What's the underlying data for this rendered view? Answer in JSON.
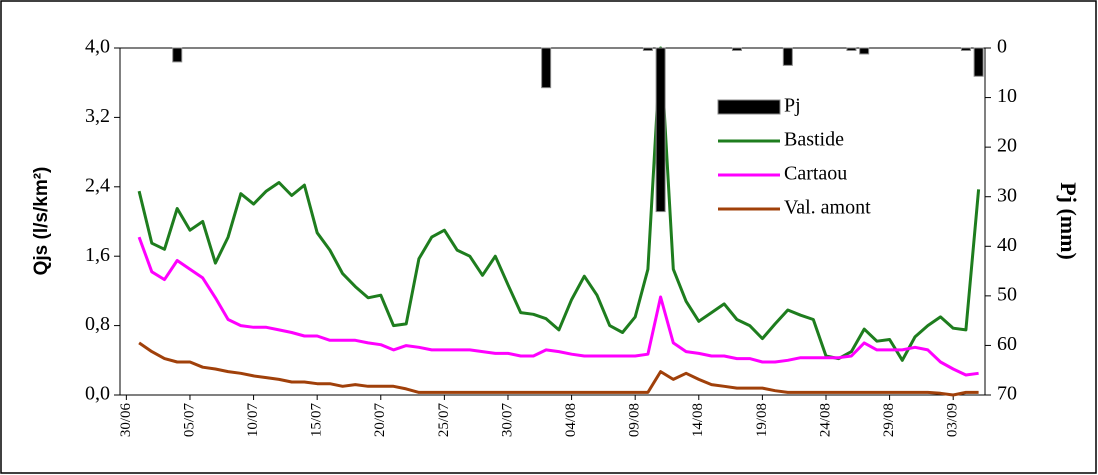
{
  "chart_data": {
    "type": "line",
    "y_label": "Qjs (l/s/km²)",
    "y2_label": "Pj (mm)",
    "categories": [
      "30/06",
      null,
      null,
      null,
      null,
      "05/07",
      null,
      null,
      null,
      null,
      "10/07",
      null,
      null,
      null,
      null,
      "15/07",
      null,
      null,
      null,
      null,
      "20/07",
      null,
      null,
      null,
      null,
      "25/07",
      null,
      null,
      null,
      null,
      "30/07",
      null,
      null,
      null,
      null,
      "04/08",
      null,
      null,
      null,
      null,
      "09/08",
      null,
      null,
      null,
      null,
      "14/08",
      null,
      null,
      null,
      null,
      "19/08",
      null,
      null,
      null,
      null,
      "24/08",
      null,
      null,
      null,
      null,
      "29/08",
      null,
      null,
      null,
      null,
      "03/09",
      null,
      null
    ],
    "ylim": [
      0,
      4
    ],
    "yticks": [
      {
        "value": 0,
        "label": "0,0"
      },
      {
        "value": 0.8,
        "label": "0,8"
      },
      {
        "value": 1.6,
        "label": "1,6"
      },
      {
        "value": 2.4,
        "label": "2,4"
      },
      {
        "value": 3.2,
        "label": "3,2"
      },
      {
        "value": 4,
        "label": "4,0"
      }
    ],
    "y2lim": [
      0,
      70
    ],
    "y2_inverted": true,
    "y2ticks": [
      0,
      10,
      20,
      30,
      40,
      50,
      60,
      70
    ],
    "series": [
      {
        "name": "Pj",
        "type": "bar",
        "axis": "y2",
        "color": "#000000",
        "values": [
          0,
          0,
          0,
          0,
          2.8,
          0,
          0,
          0,
          0,
          0,
          0,
          0,
          0,
          0,
          0,
          0,
          0,
          0,
          0,
          0,
          0,
          0,
          0,
          0,
          0,
          0,
          0,
          0,
          0,
          0,
          0,
          0,
          0,
          8,
          0,
          0,
          0,
          0,
          0,
          0,
          0,
          0.5,
          33,
          0,
          0,
          0,
          0,
          0,
          0.5,
          0,
          0,
          0,
          3.5,
          0,
          0,
          0,
          0,
          0.5,
          1.2,
          0,
          0,
          0,
          0,
          0,
          0,
          0,
          0.5,
          5.7
        ]
      },
      {
        "name": "Bastide",
        "type": "line",
        "color": "#1e7d1e",
        "values": [
          null,
          2.35,
          1.75,
          1.68,
          2.15,
          1.9,
          2.0,
          1.52,
          1.82,
          2.32,
          2.2,
          2.35,
          2.45,
          2.3,
          2.42,
          1.87,
          1.67,
          1.4,
          1.25,
          1.12,
          1.15,
          0.8,
          0.82,
          1.57,
          1.82,
          1.9,
          1.67,
          1.6,
          1.38,
          1.6,
          1.27,
          0.95,
          0.93,
          0.88,
          0.75,
          1.1,
          1.37,
          1.15,
          0.8,
          0.72,
          0.9,
          1.45,
          4.0,
          1.45,
          1.08,
          0.85,
          0.95,
          1.05,
          0.87,
          0.8,
          0.65,
          0.82,
          0.98,
          0.92,
          0.87,
          0.45,
          0.42,
          0.5,
          0.76,
          0.62,
          0.64,
          0.4,
          0.67,
          0.8,
          0.9,
          0.77,
          0.75,
          2.37
        ]
      },
      {
        "name": "Cartaou",
        "type": "line",
        "color": "#ff00ff",
        "values": [
          null,
          1.82,
          1.42,
          1.33,
          1.55,
          1.45,
          1.35,
          1.12,
          0.87,
          0.8,
          0.78,
          0.78,
          0.75,
          0.72,
          0.68,
          0.68,
          0.63,
          0.63,
          0.63,
          0.6,
          0.58,
          0.52,
          0.57,
          0.55,
          0.52,
          0.52,
          0.52,
          0.52,
          0.5,
          0.48,
          0.48,
          0.45,
          0.45,
          0.52,
          0.5,
          0.47,
          0.45,
          0.45,
          0.45,
          0.45,
          0.45,
          0.47,
          1.13,
          0.6,
          0.5,
          0.48,
          0.45,
          0.45,
          0.42,
          0.42,
          0.38,
          0.38,
          0.4,
          0.43,
          0.43,
          0.43,
          0.43,
          0.45,
          0.6,
          0.52,
          0.52,
          0.52,
          0.55,
          0.52,
          0.38,
          0.3,
          0.23,
          0.25
        ]
      },
      {
        "name": "Val. amont",
        "type": "line",
        "color": "#a0400a",
        "values": [
          null,
          0.6,
          0.5,
          0.42,
          0.38,
          0.38,
          0.32,
          0.3,
          0.27,
          0.25,
          0.22,
          0.2,
          0.18,
          0.15,
          0.15,
          0.13,
          0.13,
          0.1,
          0.12,
          0.1,
          0.1,
          0.1,
          0.07,
          0.03,
          0.03,
          0.03,
          0.03,
          0.03,
          0.03,
          0.03,
          0.03,
          0.03,
          0.03,
          0.03,
          0.03,
          0.03,
          0.03,
          0.03,
          0.03,
          0.03,
          0.03,
          0.03,
          0.27,
          0.18,
          0.25,
          0.18,
          0.12,
          0.1,
          0.08,
          0.08,
          0.08,
          0.05,
          0.03,
          0.03,
          0.03,
          0.03,
          0.03,
          0.03,
          0.03,
          0.03,
          0.03,
          0.03,
          0.03,
          0.03,
          0.02,
          0.0,
          0.03,
          0.03
        ]
      }
    ]
  }
}
